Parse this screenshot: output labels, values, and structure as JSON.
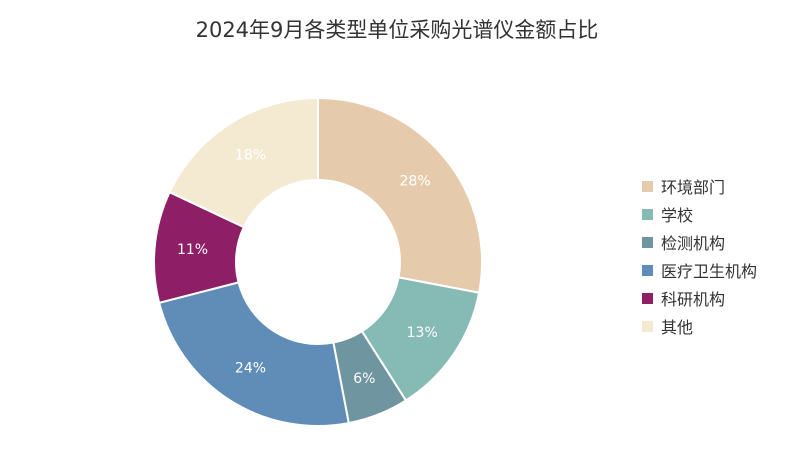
{
  "chart_data": {
    "type": "pie",
    "title": "2024年9月各类型单位采购光谱仪金额占比",
    "labels": [
      "环境部门",
      "学校",
      "检测机构",
      "医疗卫生机构",
      "科研机构",
      "其他"
    ],
    "values": [
      28,
      13,
      6,
      24,
      11,
      18
    ],
    "value_labels": [
      "28%",
      "13%",
      "6%",
      "24%",
      "11%",
      "18%"
    ],
    "colors": [
      "#e5cbab",
      "#86bab5",
      "#6f95a0",
      "#5f8db8",
      "#8e1f66",
      "#f4ead2"
    ],
    "legend": "right"
  }
}
